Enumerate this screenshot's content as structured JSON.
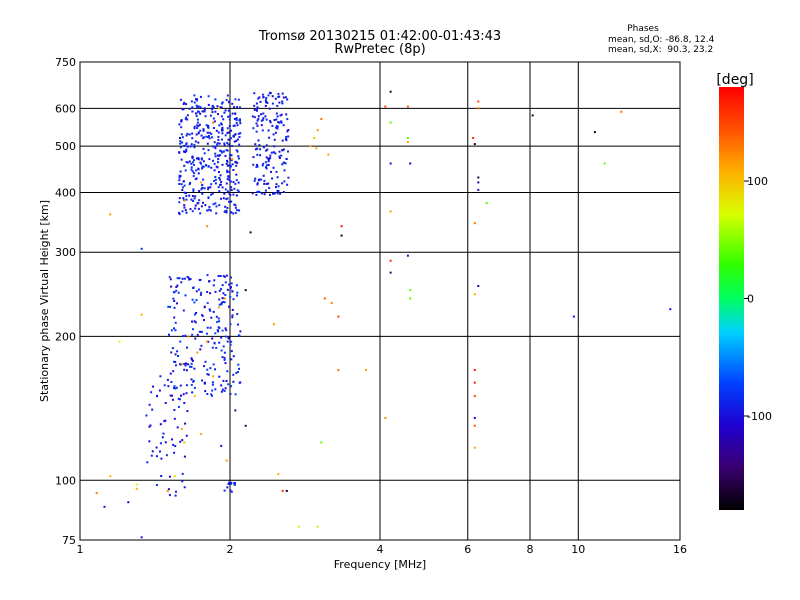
{
  "chart_data": {
    "type": "scatter",
    "title": "Tromsø 20130215 01:42:00-01:43:43",
    "subtitle": "RwPretec (8p)",
    "xlabel": "Frequency [MHz]",
    "ylabel": "Stationary phase Virtual Height [km]",
    "x_scale": "log",
    "y_scale": "log",
    "xlim": [
      1,
      16
    ],
    "ylim": [
      75,
      750
    ],
    "x_ticks": [
      1,
      2,
      4,
      6,
      8,
      10,
      16
    ],
    "y_ticks": [
      75,
      100,
      200,
      300,
      400,
      500,
      600,
      750
    ],
    "grid": true,
    "stats": {
      "heading": "Phases",
      "line_o": "mean, sd,O: -86.8, 12.4",
      "line_x": "mean, sd,X:  90.3, 23.2"
    },
    "colorbar": {
      "label": "[deg]",
      "range": [
        -180,
        180
      ],
      "ticks": [
        100,
        0,
        -100
      ]
    },
    "clusters": [
      {
        "x": [
          1.58,
          2.1
        ],
        "y": [
          360,
          640
        ],
        "n": 420,
        "phase": [
          -105,
          -75
        ]
      },
      {
        "x": [
          2.22,
          2.62
        ],
        "y": [
          395,
          650
        ],
        "n": 180,
        "phase": [
          -105,
          -80
        ]
      },
      {
        "x": [
          1.5,
          2.1
        ],
        "y": [
          150,
          270
        ],
        "n": 240,
        "phase": [
          -110,
          -70
        ]
      },
      {
        "x": [
          1.35,
          1.65
        ],
        "y": [
          92,
          160
        ],
        "n": 60,
        "phase": [
          -110,
          -80
        ]
      },
      {
        "x": [
          1.95,
          2.05
        ],
        "y": [
          94,
          99
        ],
        "n": 12,
        "phase": [
          -100,
          -80
        ]
      }
    ],
    "points": [
      {
        "x": 1.62,
        "y": 385,
        "phase": 120
      },
      {
        "x": 1.75,
        "y": 420,
        "phase": 110
      },
      {
        "x": 1.85,
        "y": 560,
        "phase": 130
      },
      {
        "x": 1.9,
        "y": 600,
        "phase": 100
      },
      {
        "x": 2.02,
        "y": 470,
        "phase": 115
      },
      {
        "x": 1.8,
        "y": 340,
        "phase": 125
      },
      {
        "x": 2.9,
        "y": 500,
        "phase": 110
      },
      {
        "x": 2.95,
        "y": 520,
        "phase": 95
      },
      {
        "x": 3.0,
        "y": 540,
        "phase": 120
      },
      {
        "x": 3.05,
        "y": 570,
        "phase": 130
      },
      {
        "x": 2.98,
        "y": 495,
        "phase": 105
      },
      {
        "x": 3.15,
        "y": 480,
        "phase": 115
      },
      {
        "x": 3.35,
        "y": 340,
        "phase": 170
      },
      {
        "x": 3.35,
        "y": 325,
        "phase": -170
      },
      {
        "x": 4.1,
        "y": 605,
        "phase": 150
      },
      {
        "x": 4.2,
        "y": 650,
        "phase": -170
      },
      {
        "x": 4.55,
        "y": 605,
        "phase": 140
      },
      {
        "x": 4.2,
        "y": 560,
        "phase": 40
      },
      {
        "x": 4.55,
        "y": 520,
        "phase": 35
      },
      {
        "x": 4.55,
        "y": 510,
        "phase": 110
      },
      {
        "x": 4.2,
        "y": 460,
        "phase": -100
      },
      {
        "x": 4.6,
        "y": 460,
        "phase": -110
      },
      {
        "x": 4.2,
        "y": 365,
        "phase": 115
      },
      {
        "x": 4.2,
        "y": 288,
        "phase": 160
      },
      {
        "x": 4.2,
        "y": 272,
        "phase": -150
      },
      {
        "x": 4.55,
        "y": 295,
        "phase": -130
      },
      {
        "x": 4.6,
        "y": 250,
        "phase": 40
      },
      {
        "x": 4.6,
        "y": 240,
        "phase": 35
      },
      {
        "x": 4.1,
        "y": 135,
        "phase": 120
      },
      {
        "x": 3.75,
        "y": 170,
        "phase": 115
      },
      {
        "x": 3.3,
        "y": 170,
        "phase": 130
      },
      {
        "x": 3.2,
        "y": 235,
        "phase": 125
      },
      {
        "x": 3.3,
        "y": 220,
        "phase": 150
      },
      {
        "x": 3.1,
        "y": 240,
        "phase": 140
      },
      {
        "x": 3.05,
        "y": 120,
        "phase": 40
      },
      {
        "x": 3.0,
        "y": 80,
        "phase": 60
      },
      {
        "x": 2.55,
        "y": 95,
        "phase": 160
      },
      {
        "x": 2.6,
        "y": 95,
        "phase": -170
      },
      {
        "x": 2.5,
        "y": 103,
        "phase": 110
      },
      {
        "x": 2.45,
        "y": 212,
        "phase": 120
      },
      {
        "x": 2.75,
        "y": 80,
        "phase": 80
      },
      {
        "x": 2.2,
        "y": 330,
        "phase": -165
      },
      {
        "x": 6.15,
        "y": 520,
        "phase": 160
      },
      {
        "x": 6.2,
        "y": 505,
        "phase": -170
      },
      {
        "x": 6.3,
        "y": 620,
        "phase": 145
      },
      {
        "x": 6.3,
        "y": 600,
        "phase": 130
      },
      {
        "x": 6.3,
        "y": 430,
        "phase": -160
      },
      {
        "x": 6.3,
        "y": 420,
        "phase": -110
      },
      {
        "x": 6.3,
        "y": 405,
        "phase": -100
      },
      {
        "x": 6.55,
        "y": 380,
        "phase": 30
      },
      {
        "x": 6.2,
        "y": 345,
        "phase": 130
      },
      {
        "x": 6.3,
        "y": 255,
        "phase": -110
      },
      {
        "x": 6.2,
        "y": 245,
        "phase": 110
      },
      {
        "x": 6.2,
        "y": 170,
        "phase": 170
      },
      {
        "x": 6.2,
        "y": 160,
        "phase": 165
      },
      {
        "x": 6.2,
        "y": 150,
        "phase": 150
      },
      {
        "x": 6.2,
        "y": 135,
        "phase": -100
      },
      {
        "x": 6.2,
        "y": 130,
        "phase": 140
      },
      {
        "x": 6.2,
        "y": 117,
        "phase": 115
      },
      {
        "x": 8.1,
        "y": 580,
        "phase": -160
      },
      {
        "x": 9.8,
        "y": 220,
        "phase": -90
      },
      {
        "x": 10.8,
        "y": 535,
        "phase": -170
      },
      {
        "x": 11.3,
        "y": 460,
        "phase": 40
      },
      {
        "x": 12.2,
        "y": 590,
        "phase": 135
      },
      {
        "x": 15.3,
        "y": 228,
        "phase": -100
      },
      {
        "x": 1.15,
        "y": 360,
        "phase": 115
      },
      {
        "x": 1.33,
        "y": 305,
        "phase": -80
      },
      {
        "x": 1.33,
        "y": 222,
        "phase": 110
      },
      {
        "x": 1.2,
        "y": 195,
        "phase": 75
      },
      {
        "x": 1.15,
        "y": 102,
        "phase": 105
      },
      {
        "x": 1.12,
        "y": 88,
        "phase": -100
      },
      {
        "x": 1.08,
        "y": 94,
        "phase": 130
      },
      {
        "x": 1.25,
        "y": 90,
        "phase": -110
      },
      {
        "x": 1.3,
        "y": 98,
        "phase": 70
      },
      {
        "x": 1.3,
        "y": 96,
        "phase": 110
      },
      {
        "x": 1.33,
        "y": 76,
        "phase": -90
      },
      {
        "x": 1.4,
        "y": 115,
        "phase": -100
      },
      {
        "x": 1.45,
        "y": 165,
        "phase": -90
      },
      {
        "x": 1.5,
        "y": 95,
        "phase": 120
      },
      {
        "x": 1.55,
        "y": 102,
        "phase": 90
      },
      {
        "x": 1.6,
        "y": 175,
        "phase": 125
      },
      {
        "x": 1.72,
        "y": 185,
        "phase": 120
      },
      {
        "x": 1.8,
        "y": 195,
        "phase": 130
      },
      {
        "x": 1.9,
        "y": 230,
        "phase": 115
      },
      {
        "x": 1.85,
        "y": 165,
        "phase": 110
      },
      {
        "x": 1.7,
        "y": 150,
        "phase": 105
      },
      {
        "x": 1.95,
        "y": 240,
        "phase": 135
      },
      {
        "x": 1.65,
        "y": 200,
        "phase": 125
      },
      {
        "x": 2.05,
        "y": 140,
        "phase": -130
      },
      {
        "x": 2.15,
        "y": 130,
        "phase": -150
      },
      {
        "x": 1.97,
        "y": 110,
        "phase": 115
      },
      {
        "x": 1.92,
        "y": 118,
        "phase": -100
      },
      {
        "x": 1.75,
        "y": 125,
        "phase": 110
      },
      {
        "x": 1.6,
        "y": 128,
        "phase": 115
      },
      {
        "x": 1.62,
        "y": 120,
        "phase": 100
      },
      {
        "x": 2.15,
        "y": 250,
        "phase": -160
      }
    ]
  }
}
